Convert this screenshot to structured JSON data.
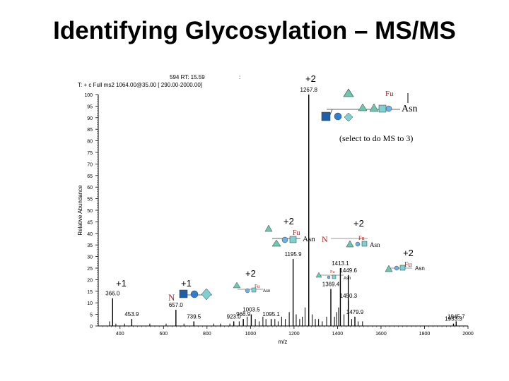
{
  "slide": {
    "title": "Identifying Glycosylation – MS/MS"
  },
  "header": {
    "scan_line": "594   RT:  15.59",
    "filter_line": "T: + c  Full ms2 1064.00@35.00 [ 290.00-2000.00]",
    "separator": ":"
  },
  "chart_data": {
    "type": "bar",
    "title": "",
    "xlabel": "m/z",
    "ylabel": "Relative Abundance",
    "xlim": [
      300,
      2000
    ],
    "ylim": [
      0,
      100
    ],
    "x_ticks": [
      400,
      600,
      800,
      1000,
      1200,
      1400,
      1600,
      1800,
      2000
    ],
    "y_ticks": [
      0,
      5,
      10,
      15,
      20,
      25,
      30,
      35,
      40,
      45,
      50,
      55,
      60,
      65,
      70,
      75,
      80,
      85,
      90,
      95,
      100
    ],
    "labeled_peaks": [
      {
        "mz": 366.0,
        "intensity": 12,
        "label": "366.0"
      },
      {
        "mz": 453.9,
        "intensity": 3,
        "label": "453.9"
      },
      {
        "mz": 657.0,
        "intensity": 7,
        "label": "657.0"
      },
      {
        "mz": 739.5,
        "intensity": 2,
        "label": "739.5"
      },
      {
        "mz": 923.0,
        "intensity": 2,
        "label": "923.0"
      },
      {
        "mz": 966.9,
        "intensity": 3,
        "label": "966.9"
      },
      {
        "mz": 1003.5,
        "intensity": 5,
        "label": "1003.5"
      },
      {
        "mz": 1095.1,
        "intensity": 3,
        "label": "1095.1"
      },
      {
        "mz": 1195.9,
        "intensity": 29,
        "label": "1195.9"
      },
      {
        "mz": 1267.8,
        "intensity": 100,
        "label": "1267.8"
      },
      {
        "mz": 1369.4,
        "intensity": 16,
        "label": "1369.4"
      },
      {
        "mz": 1413.1,
        "intensity": 25,
        "label": "1413.1"
      },
      {
        "mz": 1449.6,
        "intensity": 22,
        "label": "1449.6"
      },
      {
        "mz": 1450.3,
        "intensity": 11,
        "label": "1450.3"
      },
      {
        "mz": 1479.9,
        "intensity": 4,
        "label": "1479.9"
      },
      {
        "mz": 1945.7,
        "intensity": 2,
        "label": "1945.7"
      },
      {
        "mz": 1933.3,
        "intensity": 1,
        "label": "1933.3"
      }
    ],
    "minor_peaks": [
      {
        "mz": 352,
        "intensity": 2
      },
      {
        "mz": 381,
        "intensity": 1
      },
      {
        "mz": 421,
        "intensity": 1
      },
      {
        "mz": 537,
        "intensity": 1
      },
      {
        "mz": 612,
        "intensity": 1
      },
      {
        "mz": 694,
        "intensity": 1
      },
      {
        "mz": 831,
        "intensity": 1
      },
      {
        "mz": 862,
        "intensity": 1
      },
      {
        "mz": 905,
        "intensity": 1
      },
      {
        "mz": 948,
        "intensity": 2
      },
      {
        "mz": 985,
        "intensity": 4
      },
      {
        "mz": 1022,
        "intensity": 3
      },
      {
        "mz": 1040,
        "intensity": 2
      },
      {
        "mz": 1057,
        "intensity": 4
      },
      {
        "mz": 1071,
        "intensity": 3
      },
      {
        "mz": 1112,
        "intensity": 3
      },
      {
        "mz": 1127,
        "intensity": 2
      },
      {
        "mz": 1143,
        "intensity": 4
      },
      {
        "mz": 1160,
        "intensity": 3
      },
      {
        "mz": 1178,
        "intensity": 6
      },
      {
        "mz": 1210,
        "intensity": 5
      },
      {
        "mz": 1226,
        "intensity": 3
      },
      {
        "mz": 1238,
        "intensity": 4
      },
      {
        "mz": 1251,
        "intensity": 8
      },
      {
        "mz": 1284,
        "intensity": 5
      },
      {
        "mz": 1298,
        "intensity": 3
      },
      {
        "mz": 1313,
        "intensity": 3
      },
      {
        "mz": 1330,
        "intensity": 2
      },
      {
        "mz": 1350,
        "intensity": 4
      },
      {
        "mz": 1386,
        "intensity": 4
      },
      {
        "mz": 1396,
        "intensity": 6
      },
      {
        "mz": 1405,
        "intensity": 8
      },
      {
        "mz": 1430,
        "intensity": 5
      },
      {
        "mz": 1465,
        "intensity": 3
      },
      {
        "mz": 1495,
        "intensity": 2
      },
      {
        "mz": 1515,
        "intensity": 2
      }
    ],
    "annotations": [
      {
        "text": "+2"
      },
      {
        "text": "Fu"
      },
      {
        "text": "Asn"
      },
      {
        "text": "(select to do MS to 3)"
      },
      {
        "text": "+2"
      },
      {
        "text": "Fu"
      },
      {
        "text": "Asn"
      },
      {
        "text": "+2"
      },
      {
        "text": "N"
      },
      {
        "text": "Fu"
      },
      {
        "text": "Asn"
      },
      {
        "text": "+2"
      },
      {
        "text": "Fu"
      },
      {
        "text": "Asn"
      },
      {
        "text": "+2"
      },
      {
        "text": "Fu"
      },
      {
        "text": "Asn"
      },
      {
        "text": "+1"
      },
      {
        "text": "+1"
      },
      {
        "text": "N"
      },
      {
        "text": "Fu"
      },
      {
        "text": "Asn"
      }
    ]
  },
  "colors": {
    "peaks": "#000000",
    "glcnac_square": "#1f5fa8",
    "mannose_circle": "#2f7fd0",
    "galactose_circle": "#6ab2e8",
    "sialic_diamond": "#7fd0d0",
    "fucose_triangle": "#6cc7b0",
    "fu_label": "#b22222",
    "n_label": "#b22222"
  }
}
